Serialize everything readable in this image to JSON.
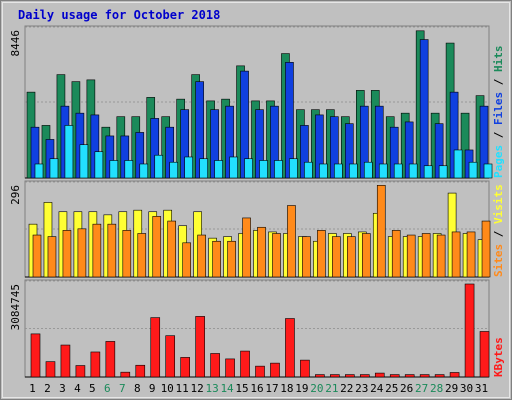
{
  "colors": {
    "background": "#c0c0c0",
    "title": "#0000cc",
    "hits": "#1b8a5a",
    "files": "#1040e0",
    "pages": "#22e0ff",
    "visits": "#ffff33",
    "sites": "#ff8a1a",
    "kbytes": "#ff1a1a",
    "weekend_day": "#1b8a5a",
    "weekday": "#000000"
  },
  "chart_data": {
    "type": "bar",
    "title": "Daily usage for October 2018",
    "x": [
      "1",
      "2",
      "3",
      "4",
      "5",
      "6",
      "7",
      "8",
      "9",
      "10",
      "11",
      "12",
      "13",
      "14",
      "15",
      "16",
      "17",
      "18",
      "19",
      "20",
      "21",
      "22",
      "23",
      "24",
      "25",
      "26",
      "27",
      "28",
      "29",
      "30",
      "31"
    ],
    "weekend_days": [
      "6",
      "7",
      "13",
      "14",
      "20",
      "21",
      "27",
      "28"
    ],
    "panels": [
      {
        "name": "hits-files-pages",
        "max_label": "8446",
        "ymax": 8446,
        "axis_labels": [
          {
            "text": "Pages",
            "color": "#22e0ff"
          },
          {
            "text": " / ",
            "color": "#000000"
          },
          {
            "text": "Files",
            "color": "#1040e0"
          },
          {
            "text": " / ",
            "color": "#000000"
          },
          {
            "text": "Hits",
            "color": "#1b8a5a"
          }
        ],
        "series": [
          {
            "name": "Hits",
            "color": "#1b8a5a",
            "values": [
              4900,
              3000,
              5900,
              5500,
              5600,
              2900,
              3500,
              3500,
              4600,
              3500,
              4500,
              5900,
              4400,
              4500,
              6400,
              4400,
              4400,
              7100,
              3900,
              3900,
              3900,
              3500,
              5000,
              5000,
              3500,
              3700,
              8400,
              3700,
              7700,
              3700,
              4700
            ]
          },
          {
            "name": "Files",
            "color": "#1040e0",
            "values": [
              2900,
              2200,
              4100,
              3700,
              3600,
              2400,
              2400,
              2600,
              3400,
              2900,
              3900,
              5500,
              3900,
              4100,
              6100,
              3900,
              4100,
              6600,
              3000,
              3600,
              3500,
              3100,
              4100,
              4100,
              2900,
              3200,
              7900,
              3100,
              4900,
              1600,
              4100
            ]
          },
          {
            "name": "Pages",
            "color": "#22e0ff",
            "values": [
              800,
              1100,
              3000,
              1900,
              1500,
              1000,
              1000,
              800,
              1300,
              900,
              1200,
              1100,
              1000,
              1200,
              1100,
              1000,
              1000,
              1100,
              900,
              800,
              800,
              800,
              900,
              800,
              800,
              800,
              700,
              700,
              1600,
              900,
              800
            ]
          }
        ]
      },
      {
        "name": "visits-sites",
        "max_label": "296",
        "ymax": 296,
        "axis_labels": [
          {
            "text": "Sites",
            "color": "#ff8a1a"
          },
          {
            "text": " / ",
            "color": "#000000"
          },
          {
            "text": "Visits",
            "color": "#ffff33"
          }
        ],
        "series": [
          {
            "name": "Visits",
            "color": "#ffff33",
            "values": [
              170,
              240,
              210,
              210,
              210,
              200,
              210,
              215,
              210,
              215,
              165,
              210,
              125,
              130,
              140,
              150,
              145,
              140,
              130,
              115,
              140,
              140,
              145,
              205,
              130,
              130,
              130,
              140,
              270,
              140,
              120
            ]
          },
          {
            "name": "Sites",
            "color": "#ff8a1a",
            "values": [
              135,
              130,
              150,
              155,
              170,
              170,
              150,
              140,
              195,
              180,
              110,
              135,
              115,
              115,
              190,
              160,
              140,
              230,
              130,
              150,
              130,
              130,
              140,
              295,
              150,
              135,
              140,
              135,
              145,
              145,
              180
            ]
          }
        ]
      },
      {
        "name": "kbytes",
        "max_label": "3084745",
        "ymax": 3084745,
        "axis_labels": [
          {
            "text": "KBytes",
            "color": "#ff1a1a"
          }
        ],
        "series": [
          {
            "name": "KBytes",
            "color": "#ff1a1a",
            "values": [
              1430000,
              510000,
              1060000,
              380000,
              830000,
              1180000,
              160000,
              390000,
              1970000,
              1370000,
              650000,
              2010000,
              780000,
              600000,
              860000,
              360000,
              460000,
              1940000,
              560000,
              80000,
              80000,
              80000,
              80000,
              130000,
              80000,
              80000,
              80000,
              80000,
              150000,
              3084745,
              1510000
            ]
          }
        ]
      }
    ]
  }
}
